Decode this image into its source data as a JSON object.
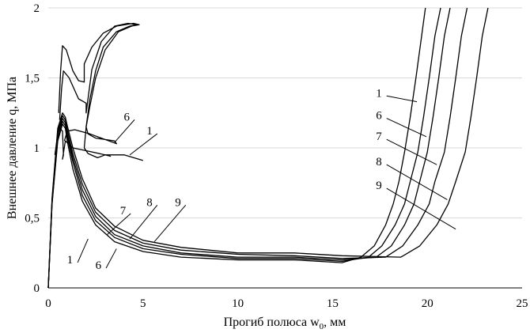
{
  "chart_data": {
    "type": "line",
    "xlabel": "Прогиб полюса w",
    "xlabel_sub": "0",
    "xlabel_unit": ", мм",
    "ylabel": "Внешнее давление q, МПа",
    "xlim": [
      0,
      25
    ],
    "ylim": [
      0,
      2
    ],
    "xticks": [
      0,
      5,
      10,
      15,
      20,
      25
    ],
    "xtick_labels": [
      "0",
      "5",
      "10",
      "15",
      "20",
      "25"
    ],
    "yticks": [
      0,
      0.5,
      1,
      1.5,
      2
    ],
    "ytick_labels": [
      "0",
      "0,5",
      "1",
      "1,5",
      "2"
    ],
    "grid": false,
    "curve_labels": [
      "1",
      "6",
      "7",
      "8",
      "9"
    ],
    "series": [
      {
        "label": "1",
        "x": [
          0,
          0.2,
          0.5,
          0.75,
          0.9,
          1.0,
          1.3,
          1.8,
          2.5,
          3.5,
          5,
          7,
          10,
          13,
          15.5,
          16.5,
          17.2,
          17.8,
          18.2,
          18.5,
          18.8,
          19.1,
          19.4,
          19.7,
          19.9
        ],
        "y": [
          0,
          0.6,
          1.05,
          1.17,
          1.14,
          1.05,
          0.85,
          0.62,
          0.45,
          0.33,
          0.26,
          0.22,
          0.2,
          0.2,
          0.18,
          0.22,
          0.3,
          0.45,
          0.6,
          0.76,
          0.97,
          1.22,
          1.5,
          1.8,
          2.0
        ]
      },
      {
        "label": "1",
        "part": "upper",
        "x": [
          0.35,
          0.55,
          0.75,
          0.8,
          0.75,
          0.9,
          1.3,
          2.0,
          3.0,
          4.0,
          5.0
        ],
        "y": [
          0.95,
          1.15,
          1.12,
          0.95,
          0.92,
          1.05,
          1.0,
          0.98,
          0.95,
          0.95,
          0.91
        ]
      },
      {
        "label": "1",
        "part": "loop",
        "x": [
          0.6,
          0.7,
          0.8,
          1.1,
          1.6,
          2.0,
          2.0,
          2.3,
          2.8,
          3.5,
          4.2,
          4.7,
          4.3,
          3.6,
          2.9,
          2.5,
          2.2,
          2.0,
          1.9,
          2.1,
          2.6,
          3.0,
          3.3
        ],
        "y": [
          1.2,
          1.42,
          1.55,
          1.5,
          1.35,
          1.32,
          1.25,
          1.56,
          1.76,
          1.87,
          1.89,
          1.88,
          1.87,
          1.83,
          1.72,
          1.55,
          1.35,
          1.15,
          1.0,
          0.96,
          0.93,
          0.95,
          0.94
        ]
      },
      {
        "label": "6",
        "x": [
          0,
          0.2,
          0.5,
          0.75,
          0.9,
          1.0,
          1.3,
          1.8,
          2.5,
          3.5,
          5,
          7,
          10,
          13,
          15.5,
          16.9,
          17.6,
          18.3,
          18.8,
          19.1,
          19.5,
          19.8,
          20.1,
          20.4,
          20.7
        ],
        "y": [
          0,
          0.6,
          1.07,
          1.19,
          1.16,
          1.08,
          0.9,
          0.66,
          0.48,
          0.36,
          0.28,
          0.24,
          0.21,
          0.21,
          0.19,
          0.22,
          0.3,
          0.45,
          0.6,
          0.76,
          0.97,
          1.22,
          1.5,
          1.8,
          2.0
        ]
      },
      {
        "label": "6",
        "part": "loop",
        "x": [
          0.55,
          0.65,
          0.75,
          0.95,
          1.3,
          1.6,
          1.9,
          1.9,
          2.3,
          2.9,
          3.6,
          4.5,
          4.8,
          4.4,
          3.7,
          3.0,
          2.5,
          2.2,
          2.0,
          2.1,
          2.5,
          3.0,
          3.5,
          3.6,
          2.2,
          1.4,
          1.0,
          0.85
        ],
        "y": [
          1.25,
          1.55,
          1.73,
          1.7,
          1.55,
          1.48,
          1.47,
          1.6,
          1.72,
          1.82,
          1.87,
          1.89,
          1.88,
          1.87,
          1.83,
          1.7,
          1.5,
          1.3,
          1.15,
          1.1,
          1.07,
          1.06,
          1.05,
          1.03,
          1.1,
          1.13,
          1.12,
          1.05
        ]
      },
      {
        "label": "7",
        "x": [
          0,
          0.2,
          0.5,
          0.75,
          0.9,
          1.0,
          1.3,
          1.8,
          2.5,
          3.5,
          5,
          7,
          10,
          13,
          15.5,
          17.3,
          18.1,
          18.8,
          19.3,
          19.6,
          20.0,
          20.3,
          20.6,
          20.9,
          21.2
        ],
        "y": [
          0,
          0.62,
          1.1,
          1.21,
          1.18,
          1.1,
          0.93,
          0.7,
          0.51,
          0.38,
          0.3,
          0.25,
          0.22,
          0.22,
          0.2,
          0.22,
          0.3,
          0.45,
          0.6,
          0.76,
          0.97,
          1.22,
          1.5,
          1.8,
          2.0
        ]
      },
      {
        "label": "8",
        "x": [
          0,
          0.2,
          0.5,
          0.75,
          0.9,
          1.0,
          1.3,
          1.8,
          2.5,
          3.5,
          5,
          7,
          10,
          13,
          15.5,
          17.8,
          18.7,
          19.5,
          20.1,
          20.4,
          20.9,
          21.2,
          21.5,
          21.8,
          22.1
        ],
        "y": [
          0,
          0.63,
          1.12,
          1.23,
          1.2,
          1.13,
          0.96,
          0.74,
          0.54,
          0.41,
          0.32,
          0.27,
          0.24,
          0.23,
          0.21,
          0.22,
          0.3,
          0.45,
          0.6,
          0.76,
          0.97,
          1.22,
          1.5,
          1.8,
          2.0
        ]
      },
      {
        "label": "9",
        "x": [
          0,
          0.2,
          0.5,
          0.75,
          0.9,
          1.0,
          1.3,
          1.8,
          2.5,
          3.5,
          5,
          7,
          10,
          13,
          15.5,
          18.6,
          19.6,
          20.5,
          21.1,
          21.5,
          22.0,
          22.3,
          22.6,
          22.9,
          23.2
        ],
        "y": [
          0,
          0.64,
          1.14,
          1.25,
          1.22,
          1.16,
          1.0,
          0.78,
          0.57,
          0.44,
          0.34,
          0.29,
          0.25,
          0.25,
          0.23,
          0.22,
          0.3,
          0.45,
          0.6,
          0.76,
          0.97,
          1.22,
          1.5,
          1.8,
          2.0
        ]
      }
    ],
    "annotations": [
      {
        "text": "1",
        "text_at": [
          17.6,
          1.36
        ],
        "line_to": [
          19.45,
          1.33
        ]
      },
      {
        "text": "6",
        "text_at": [
          17.6,
          1.2
        ],
        "line_to": [
          19.95,
          1.08
        ]
      },
      {
        "text": "7",
        "text_at": [
          17.6,
          1.05
        ],
        "line_to": [
          20.5,
          0.88
        ]
      },
      {
        "text": "8",
        "text_at": [
          17.6,
          0.87
        ],
        "line_to": [
          21.05,
          0.63
        ]
      },
      {
        "text": "9",
        "text_at": [
          17.6,
          0.7
        ],
        "line_to": [
          21.5,
          0.42
        ]
      },
      {
        "text": "6",
        "text_at": [
          4.3,
          1.19
        ],
        "line_to": [
          3.5,
          1.04
        ]
      },
      {
        "text": "1",
        "text_at": [
          5.5,
          1.09
        ],
        "line_to": [
          4.3,
          0.95
        ]
      },
      {
        "text": "7",
        "text_at": [
          4.1,
          0.52
        ],
        "line_to": [
          3.1,
          0.38
        ]
      },
      {
        "text": "8",
        "text_at": [
          5.5,
          0.58
        ],
        "line_to": [
          4.3,
          0.35
        ]
      },
      {
        "text": "9",
        "text_at": [
          7.0,
          0.58
        ],
        "line_to": [
          5.6,
          0.33
        ]
      },
      {
        "text": "1",
        "text_at": [
          1.3,
          0.17
        ],
        "line_to": [
          2.1,
          0.35
        ]
      },
      {
        "text": "6",
        "text_at": [
          2.8,
          0.13
        ],
        "line_to": [
          3.6,
          0.28
        ]
      }
    ]
  }
}
